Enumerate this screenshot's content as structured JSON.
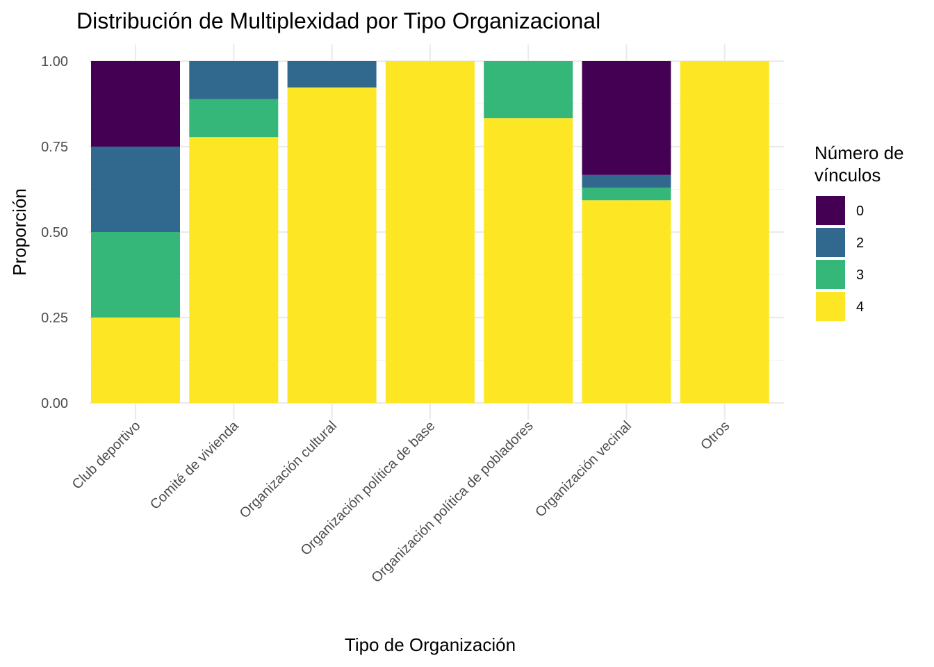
{
  "chart_data": {
    "type": "bar",
    "stacked": true,
    "title": "Distribución de Multiplexidad por Tipo Organizacional",
    "xlabel": "Tipo de Organización",
    "ylabel": "Proporción",
    "ylim": [
      0,
      1
    ],
    "yticks": [
      "0.00",
      "0.25",
      "0.50",
      "0.75",
      "1.00"
    ],
    "grid": true,
    "legend": {
      "title_lines": [
        "Número de",
        "vínculos"
      ],
      "position": "right"
    },
    "categories": [
      "Club deportivo",
      "Comité de vivienda",
      "Organización cultural",
      "Organización política de base",
      "Organización política de pobladores",
      "Organización vecinal",
      "Otros"
    ],
    "series": [
      {
        "name": "0",
        "color": "#440154",
        "values": [
          0.25,
          0,
          0,
          0,
          0,
          0.333,
          0
        ]
      },
      {
        "name": "2",
        "color": "#31688E",
        "values": [
          0.25,
          0.111,
          0.077,
          0,
          0,
          0.037,
          0
        ]
      },
      {
        "name": "3",
        "color": "#35B779",
        "values": [
          0.25,
          0.111,
          0,
          0,
          0.167,
          0.037,
          0
        ]
      },
      {
        "name": "4",
        "color": "#FDE725",
        "values": [
          0.25,
          0.778,
          0.923,
          1.0,
          0.833,
          0.593,
          1.0
        ]
      }
    ]
  }
}
